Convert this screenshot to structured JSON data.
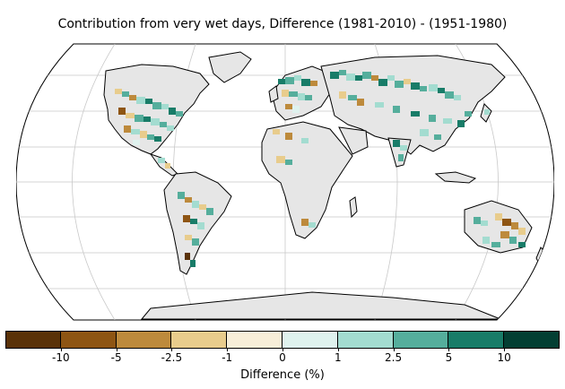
{
  "map": {
    "title": "Contribution from very wet days, Difference (1981-2010) - (1951-1980)",
    "projection": "Robinson",
    "land_no_data_color": "#e6e6e6",
    "ocean_color": "#ffffff",
    "graticule_color": "#c8c8c8",
    "coastline_color": "#000000"
  },
  "colorbar": {
    "label": "Difference (%)",
    "ticks": [
      "-10",
      "-5",
      "-2.5",
      "-1",
      "0",
      "1",
      "2.5",
      "5",
      "10"
    ],
    "colors": [
      "#5a3208",
      "#8e5513",
      "#bd8a3c",
      "#e8cc8c",
      "#f7eed8",
      "#dff2ee",
      "#a3dcd0",
      "#55ae9c",
      "#187c68",
      "#033f33"
    ]
  }
}
